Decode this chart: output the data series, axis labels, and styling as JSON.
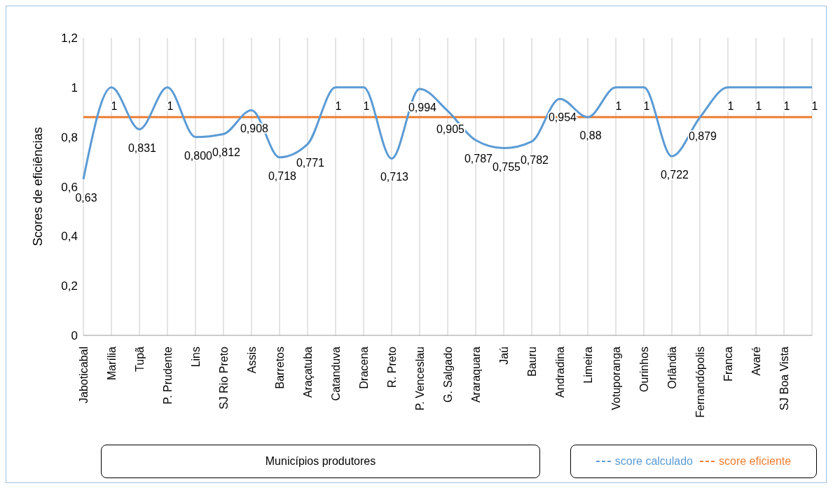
{
  "chart_data": {
    "type": "line",
    "xlabel": "Municípios produtores",
    "ylabel": "Scores de eficiências",
    "categories": [
      "Jaboticabal",
      "Marília",
      "Tupã",
      "P.  Prudente",
      "Lins",
      "SJ Rio Preto",
      "Assis",
      "Barretos",
      "Araçatuba",
      "Catanduva",
      "Dracena",
      "R.  Preto",
      "P.  Venceslau",
      "G.  Salgado",
      "Araraquara",
      "Jaú",
      "Bauru",
      "Andradina",
      "Limeira",
      "Votuporanga",
      "Ourinhos",
      "Orlândia",
      "Fernandópolis",
      "Franca",
      "Avaré",
      "SJ Boa Vista",
      null
    ],
    "series": [
      {
        "name": "score calculado",
        "color": "#5b9bd5",
        "values": [
          0.63,
          1,
          0.831,
          1,
          0.8,
          0.812,
          0.908,
          0.718,
          0.771,
          1,
          1,
          0.713,
          0.994,
          0.905,
          0.787,
          0.755,
          0.782,
          0.954,
          0.88,
          1,
          1,
          0.722,
          0.879,
          1,
          1,
          1,
          1
        ],
        "value_labels": [
          "0,63",
          "1",
          "0,831",
          "1",
          "0,800",
          "0,812",
          "0,908",
          "0,718",
          "0,771",
          "1",
          "1",
          "0,713",
          "0,994",
          "0,905",
          "0,787",
          "0,755",
          "0,782",
          "0,954",
          "0,88",
          "1",
          "1",
          "0,722",
          "0,879",
          "1",
          "1",
          "1",
          "1"
        ]
      }
    ],
    "ref_lines": [
      {
        "axis": "y",
        "value": 0.88,
        "label": "score eficiente",
        "color": "#ed7d31"
      }
    ],
    "ylim": [
      0,
      1.2
    ],
    "yticks": [
      0,
      {
        "value": 0.2,
        "label": "0,2"
      },
      {
        "value": 0.4,
        "label": "0,4"
      },
      {
        "value": 0.6,
        "label": "0,6"
      },
      {
        "value": 0.8,
        "label": "0,8"
      },
      1,
      {
        "value": 1.2,
        "label": "1,2"
      }
    ],
    "grid": "x",
    "legend": "bottom right",
    "marker": "none",
    "line_style": "solid"
  }
}
